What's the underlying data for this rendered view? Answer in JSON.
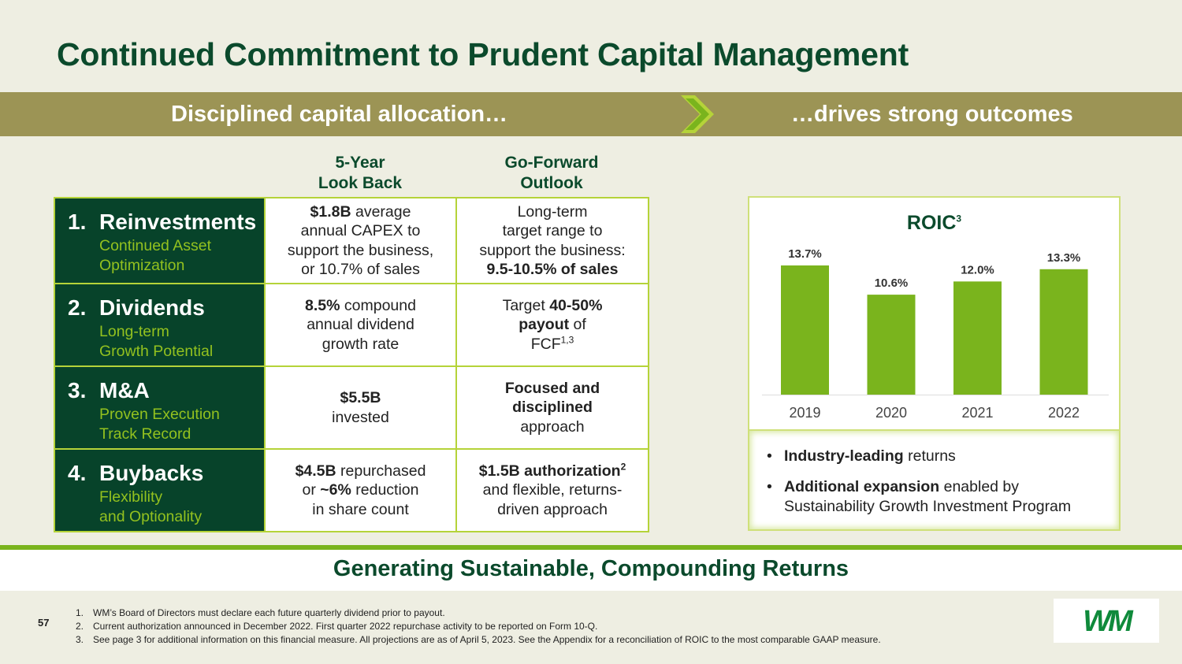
{
  "title": "Continued Commitment to Prudent Capital Management",
  "band": {
    "left": "Disciplined capital allocation…",
    "right": "…drives strong outcomes"
  },
  "col_headers": {
    "lookback": "5-Year\nLook Back",
    "outlook": "Go-Forward\nOutlook"
  },
  "rows": [
    {
      "num": "1.",
      "title": "Reinvestments",
      "sub": "Continued Asset\nOptimization",
      "lookback": [
        {
          "t": "$1.8B",
          "b": true
        },
        {
          "t": " average\nannual CAPEX to\nsupport the business,\nor 10.7% of sales",
          "b": false
        }
      ],
      "outlook": [
        {
          "t": "Long-term\ntarget range to\nsupport the business:\n",
          "b": false
        },
        {
          "t": "9.5-10.5% of sales",
          "b": true
        }
      ]
    },
    {
      "num": "2.",
      "title": "Dividends",
      "sub": "Long-term\nGrowth Potential",
      "lookback": [
        {
          "t": "8.5%",
          "b": true
        },
        {
          "t": " compound\nannual dividend\ngrowth rate",
          "b": false
        }
      ],
      "outlook": [
        {
          "t": "Target ",
          "b": false
        },
        {
          "t": "40-50%\npayout",
          "b": true
        },
        {
          "t": " of\nFCF",
          "b": false
        },
        {
          "t": "1,3",
          "b": false,
          "sup": true
        }
      ]
    },
    {
      "num": "3.",
      "title": "M&A",
      "sub": "Proven Execution\nTrack Record",
      "lookback": [
        {
          "t": "$5.5B",
          "b": true
        },
        {
          "t": "\ninvested",
          "b": false
        }
      ],
      "outlook": [
        {
          "t": "Focused and\ndisciplined",
          "b": true
        },
        {
          "t": "\napproach",
          "b": false
        }
      ]
    },
    {
      "num": "4.",
      "title": "Buybacks",
      "sub": "Flexibility\nand Optionality",
      "lookback": [
        {
          "t": "$4.5B",
          "b": true
        },
        {
          "t": " repurchased\nor ",
          "b": false
        },
        {
          "t": "~6%",
          "b": true
        },
        {
          "t": " reduction\nin share count",
          "b": false
        }
      ],
      "outlook": [
        {
          "t": "$1.5B authorization",
          "b": true
        },
        {
          "t": "2",
          "b": true,
          "sup": true
        },
        {
          "t": "\nand flexible, returns-\ndriven approach",
          "b": false
        }
      ]
    }
  ],
  "chart_title": "ROIC",
  "chart_title_sup": "3",
  "chart_data": {
    "type": "bar",
    "title": "ROIC³",
    "categories": [
      "2019",
      "2020",
      "2021",
      "2022"
    ],
    "values": [
      13.7,
      10.6,
      12.0,
      13.3
    ],
    "labels": [
      "13.7%",
      "10.6%",
      "12.0%",
      "13.3%"
    ],
    "ylim": [
      0,
      13.7
    ],
    "color": "#7ab41d",
    "grid": false
  },
  "bullets": [
    [
      {
        "t": "Industry-leading",
        "b": true
      },
      {
        "t": " returns",
        "b": false
      }
    ],
    [
      {
        "t": "Additional expansion",
        "b": true
      },
      {
        "t": " enabled by\nSustainability Growth Investment Program",
        "b": false
      }
    ]
  ],
  "bullet_char": "•",
  "footer_title": "Generating Sustainable, Compounding Returns",
  "page_number": "57",
  "notes": [
    {
      "n": "1.",
      "t": "WM’s Board of Directors must declare each future quarterly dividend prior to payout."
    },
    {
      "n": "2.",
      "t": "Current authorization announced in December 2022. First quarter 2022 repurchase activity to be reported on Form 10-Q."
    },
    {
      "n": "3.",
      "t": "See page 3 for additional information on this financial measure. All projections are as of April 5, 2023. See the Appendix for a reconciliation of ROIC to the most comparable GAAP measure."
    }
  ],
  "logo_text": "WM",
  "colors": {
    "dark_green": "#07432a",
    "accent_green": "#7ab41d",
    "band": "#9c9455",
    "chevron": "#b5d339"
  }
}
